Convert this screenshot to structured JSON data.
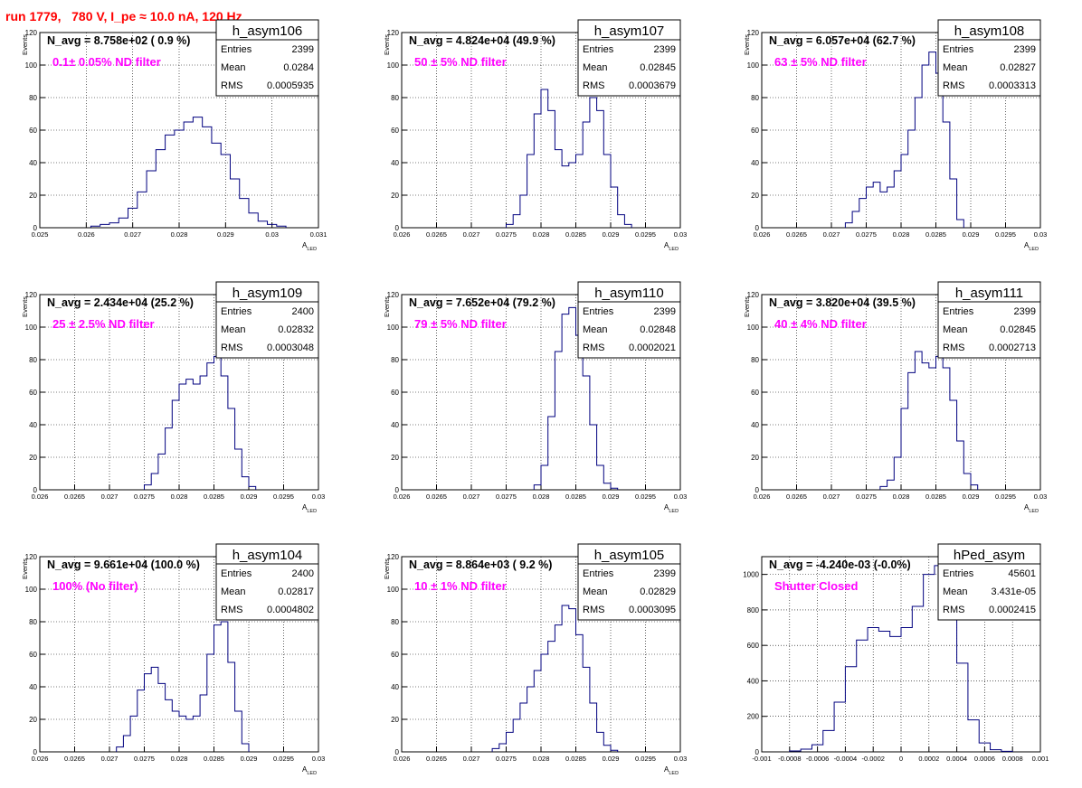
{
  "run_title": "run 1779,   780 V, I_pe ≈ 10.0 nA, 120 Hz",
  "colors": {
    "hist_line": "#00007f",
    "run_title": "#ff0000",
    "filter_text": "#ff00ff",
    "grid": "#000000"
  },
  "stat_labels": {
    "entries": "Entries",
    "mean": "Mean",
    "rms": "RMS"
  },
  "chart_data": [
    {
      "type": "bar",
      "subtype": "histogram-step",
      "name": "h_asym106",
      "navg": "N_avg = 8.758e+02 ( 0.9 %)",
      "filter": "0.1± 0.05% ND filter",
      "entries": "2399",
      "mean": "0.0284",
      "rms": "0.0005935",
      "ylabel": "Events",
      "xlabel": "A_LED",
      "xlim": [
        0.025,
        0.031
      ],
      "ylim": [
        0,
        120
      ],
      "xticks": [
        0.025,
        0.026,
        0.027,
        0.028,
        0.029,
        0.03,
        0.031
      ],
      "xtick_labels": [
        "0.025",
        "0.026",
        "0.027",
        "0.028",
        "0.029",
        "0.03",
        "0.031"
      ],
      "yticks": [
        0,
        20,
        40,
        60,
        80,
        100,
        120
      ],
      "grid": true,
      "x": [
        0.0262,
        0.0264,
        0.0266,
        0.0268,
        0.027,
        0.0272,
        0.0274,
        0.0276,
        0.0278,
        0.028,
        0.0282,
        0.0284,
        0.0286,
        0.0288,
        0.029,
        0.0292,
        0.0294,
        0.0296,
        0.0298,
        0.03,
        0.0302
      ],
      "values": [
        1,
        2,
        3,
        6,
        12,
        22,
        35,
        48,
        57,
        60,
        65,
        68,
        62,
        52,
        45,
        30,
        18,
        9,
        4,
        2,
        1
      ]
    },
    {
      "type": "bar",
      "subtype": "histogram-step",
      "name": "h_asym107",
      "navg": "N_avg = 4.824e+04 (49.9 %)",
      "filter": "50 ± 5% ND filter",
      "entries": "2399",
      "mean": "0.02845",
      "rms": "0.0003679",
      "ylabel": "Events",
      "xlabel": "A_LED",
      "xlim": [
        0.026,
        0.03
      ],
      "ylim": [
        0,
        120
      ],
      "xticks": [
        0.026,
        0.0265,
        0.027,
        0.0275,
        0.028,
        0.0285,
        0.029,
        0.0295,
        0.03
      ],
      "xtick_labels": [
        "0.026",
        "0.0265",
        "0.027",
        "0.0275",
        "0.028",
        "0.0285",
        "0.029",
        "0.0295",
        "0.03"
      ],
      "yticks": [
        0,
        20,
        40,
        60,
        80,
        100,
        120
      ],
      "grid": true,
      "x": [
        0.02755,
        0.02765,
        0.02775,
        0.02785,
        0.02795,
        0.02805,
        0.02815,
        0.02825,
        0.02835,
        0.02845,
        0.02855,
        0.02865,
        0.02875,
        0.02885,
        0.02895,
        0.02905,
        0.02915,
        0.02925
      ],
      "values": [
        2,
        8,
        20,
        45,
        70,
        85,
        72,
        48,
        38,
        40,
        45,
        65,
        80,
        72,
        45,
        25,
        8,
        2
      ]
    },
    {
      "type": "bar",
      "subtype": "histogram-step",
      "name": "h_asym108",
      "navg": "N_avg = 6.057e+04 (62.7 %)",
      "filter": "63 ± 5% ND filter",
      "entries": "2399",
      "mean": "0.02827",
      "rms": "0.0003313",
      "ylabel": "Events",
      "xlabel": "A_LED",
      "xlim": [
        0.026,
        0.03
      ],
      "ylim": [
        0,
        120
      ],
      "xticks": [
        0.026,
        0.0265,
        0.027,
        0.0275,
        0.028,
        0.0285,
        0.029,
        0.0295,
        0.03
      ],
      "xtick_labels": [
        "0.026",
        "0.0265",
        "0.027",
        "0.0275",
        "0.028",
        "0.0285",
        "0.029",
        "0.0295",
        "0.03"
      ],
      "yticks": [
        0,
        20,
        40,
        60,
        80,
        100,
        120
      ],
      "grid": true,
      "x": [
        0.02725,
        0.02735,
        0.02745,
        0.02755,
        0.02765,
        0.02775,
        0.02785,
        0.02795,
        0.02805,
        0.02815,
        0.02825,
        0.02835,
        0.02845,
        0.02855,
        0.02865,
        0.02875,
        0.02885
      ],
      "values": [
        3,
        10,
        18,
        25,
        28,
        22,
        25,
        35,
        45,
        60,
        80,
        100,
        108,
        95,
        65,
        30,
        5
      ]
    },
    {
      "type": "bar",
      "subtype": "histogram-step",
      "name": "h_asym109",
      "navg": "N_avg = 2.434e+04 (25.2 %)",
      "filter": "25 ± 2.5% ND filter",
      "entries": "2400",
      "mean": "0.02832",
      "rms": "0.0003048",
      "ylabel": "Events",
      "xlabel": "A_LED",
      "xlim": [
        0.026,
        0.03
      ],
      "ylim": [
        0,
        120
      ],
      "xticks": [
        0.026,
        0.0265,
        0.027,
        0.0275,
        0.028,
        0.0285,
        0.029,
        0.0295,
        0.03
      ],
      "xtick_labels": [
        "0.026",
        "0.0265",
        "0.027",
        "0.0275",
        "0.028",
        "0.0285",
        "0.029",
        "0.0295",
        "0.03"
      ],
      "yticks": [
        0,
        20,
        40,
        60,
        80,
        100,
        120
      ],
      "grid": true,
      "x": [
        0.02755,
        0.02765,
        0.02775,
        0.02785,
        0.02795,
        0.02805,
        0.02815,
        0.02825,
        0.02835,
        0.02845,
        0.02855,
        0.02865,
        0.02875,
        0.02885,
        0.02895,
        0.02905
      ],
      "values": [
        3,
        10,
        22,
        38,
        55,
        65,
        68,
        65,
        70,
        78,
        82,
        70,
        50,
        25,
        8,
        2
      ]
    },
    {
      "type": "bar",
      "subtype": "histogram-step",
      "name": "h_asym110",
      "navg": "N_avg = 7.652e+04 (79.2 %)",
      "filter": "79 ± 5% ND filter",
      "entries": "2399",
      "mean": "0.02848",
      "rms": "0.0002021",
      "ylabel": "Events",
      "xlabel": "A_LED",
      "xlim": [
        0.026,
        0.03
      ],
      "ylim": [
        0,
        120
      ],
      "xticks": [
        0.026,
        0.0265,
        0.027,
        0.0275,
        0.028,
        0.0285,
        0.029,
        0.0295,
        0.03
      ],
      "xtick_labels": [
        "0.026",
        "0.0265",
        "0.027",
        "0.0275",
        "0.028",
        "0.0285",
        "0.029",
        "0.0295",
        "0.03"
      ],
      "yticks": [
        0,
        20,
        40,
        60,
        80,
        100,
        120
      ],
      "grid": true,
      "x": [
        0.02795,
        0.02805,
        0.02815,
        0.02825,
        0.02835,
        0.02845,
        0.02855,
        0.02865,
        0.02875,
        0.02885,
        0.02895,
        0.02905
      ],
      "values": [
        3,
        15,
        45,
        85,
        108,
        112,
        95,
        70,
        40,
        15,
        4,
        1
      ]
    },
    {
      "type": "bar",
      "subtype": "histogram-step",
      "name": "h_asym111",
      "navg": "N_avg = 3.820e+04 (39.5 %)",
      "filter": "40 ± 4% ND filter",
      "entries": "2399",
      "mean": "0.02845",
      "rms": "0.0002713",
      "ylabel": "Events",
      "xlabel": "A_LED",
      "xlim": [
        0.026,
        0.03
      ],
      "ylim": [
        0,
        120
      ],
      "xticks": [
        0.026,
        0.0265,
        0.027,
        0.0275,
        0.028,
        0.0285,
        0.029,
        0.0295,
        0.03
      ],
      "xtick_labels": [
        "0.026",
        "0.0265",
        "0.027",
        "0.0275",
        "0.028",
        "0.0285",
        "0.029",
        "0.0295",
        "0.03"
      ],
      "yticks": [
        0,
        20,
        40,
        60,
        80,
        100,
        120
      ],
      "grid": true,
      "x": [
        0.02775,
        0.02785,
        0.02795,
        0.02805,
        0.02815,
        0.02825,
        0.02835,
        0.02845,
        0.02855,
        0.02865,
        0.02875,
        0.02885,
        0.02895,
        0.02905
      ],
      "values": [
        2,
        6,
        20,
        50,
        72,
        85,
        78,
        75,
        82,
        75,
        55,
        30,
        10,
        3
      ]
    },
    {
      "type": "bar",
      "subtype": "histogram-step",
      "name": "h_asym104",
      "navg": "N_avg = 9.661e+04 (100.0 %)",
      "filter": "100% (No filter)",
      "entries": "2400",
      "mean": "0.02817",
      "rms": "0.0004802",
      "ylabel": "Events",
      "xlabel": "A_LED",
      "xlim": [
        0.026,
        0.03
      ],
      "ylim": [
        0,
        120
      ],
      "xticks": [
        0.026,
        0.0265,
        0.027,
        0.0275,
        0.028,
        0.0285,
        0.029,
        0.0295,
        0.03
      ],
      "xtick_labels": [
        "0.026",
        "0.0265",
        "0.027",
        "0.0275",
        "0.028",
        "0.0285",
        "0.029",
        "0.0295",
        "0.03"
      ],
      "yticks": [
        0,
        20,
        40,
        60,
        80,
        100,
        120
      ],
      "grid": true,
      "x": [
        0.02715,
        0.02725,
        0.02735,
        0.02745,
        0.02755,
        0.02765,
        0.02775,
        0.02785,
        0.02795,
        0.02805,
        0.02815,
        0.02825,
        0.02835,
        0.02845,
        0.02855,
        0.02865,
        0.02875,
        0.02885,
        0.02895
      ],
      "values": [
        3,
        10,
        22,
        38,
        48,
        52,
        42,
        32,
        25,
        22,
        20,
        22,
        35,
        60,
        78,
        80,
        55,
        25,
        5
      ]
    },
    {
      "type": "bar",
      "subtype": "histogram-step",
      "name": "h_asym105",
      "navg": "N_avg = 8.864e+03 ( 9.2 %)",
      "filter": "10 ± 1% ND filter",
      "entries": "2399",
      "mean": "0.02829",
      "rms": "0.0003095",
      "ylabel": "Events",
      "xlabel": "A_LED",
      "xlim": [
        0.026,
        0.03
      ],
      "ylim": [
        0,
        120
      ],
      "xticks": [
        0.026,
        0.0265,
        0.027,
        0.0275,
        0.028,
        0.0285,
        0.029,
        0.0295,
        0.03
      ],
      "xtick_labels": [
        "0.026",
        "0.0265",
        "0.027",
        "0.0275",
        "0.028",
        "0.0285",
        "0.029",
        "0.0295",
        "0.03"
      ],
      "yticks": [
        0,
        20,
        40,
        60,
        80,
        100,
        120
      ],
      "grid": true,
      "x": [
        0.02735,
        0.02745,
        0.02755,
        0.02765,
        0.02775,
        0.02785,
        0.02795,
        0.02805,
        0.02815,
        0.02825,
        0.02835,
        0.02845,
        0.02855,
        0.02865,
        0.02875,
        0.02885,
        0.02895,
        0.02905
      ],
      "values": [
        2,
        5,
        12,
        20,
        30,
        40,
        50,
        60,
        68,
        78,
        90,
        88,
        72,
        52,
        30,
        12,
        4,
        1
      ]
    },
    {
      "type": "bar",
      "subtype": "histogram-step",
      "name": "hPed_asym",
      "navg": "N_avg = -4.240e-03 (-0.0%)",
      "filter": "Shutter Closed",
      "entries": "45601",
      "mean": "3.431e-05",
      "rms": "0.0002415",
      "ylabel": "",
      "xlabel": "",
      "xlim": [
        -0.001,
        0.001
      ],
      "ylim": [
        0,
        1100
      ],
      "xticks": [
        -0.001,
        -0.0008,
        -0.0006,
        -0.0004,
        -0.0002,
        0,
        0.0002,
        0.0004,
        0.0006,
        0.0008,
        0.001
      ],
      "xtick_labels": [
        "-0.001",
        "-0.0008",
        "-0.0006",
        "-0.0004",
        "-0.0002",
        "0",
        "0.0002",
        "0.0004",
        "0.0006",
        "0.0008",
        "0.001"
      ],
      "yticks": [
        0,
        200,
        400,
        600,
        800,
        1000
      ],
      "grid": true,
      "x": [
        -0.00076,
        -0.00068,
        -0.0006,
        -0.00052,
        -0.00044,
        -0.00036,
        -0.00028,
        -0.0002,
        -0.00012,
        -4e-05,
        4e-05,
        0.00012,
        0.0002,
        0.00028,
        0.00036,
        0.00044,
        0.00052,
        0.0006,
        0.00068,
        0.00076
      ],
      "values": [
        5,
        15,
        40,
        120,
        280,
        480,
        630,
        700,
        680,
        650,
        700,
        820,
        1000,
        1050,
        880,
        500,
        180,
        50,
        12,
        3
      ]
    }
  ]
}
